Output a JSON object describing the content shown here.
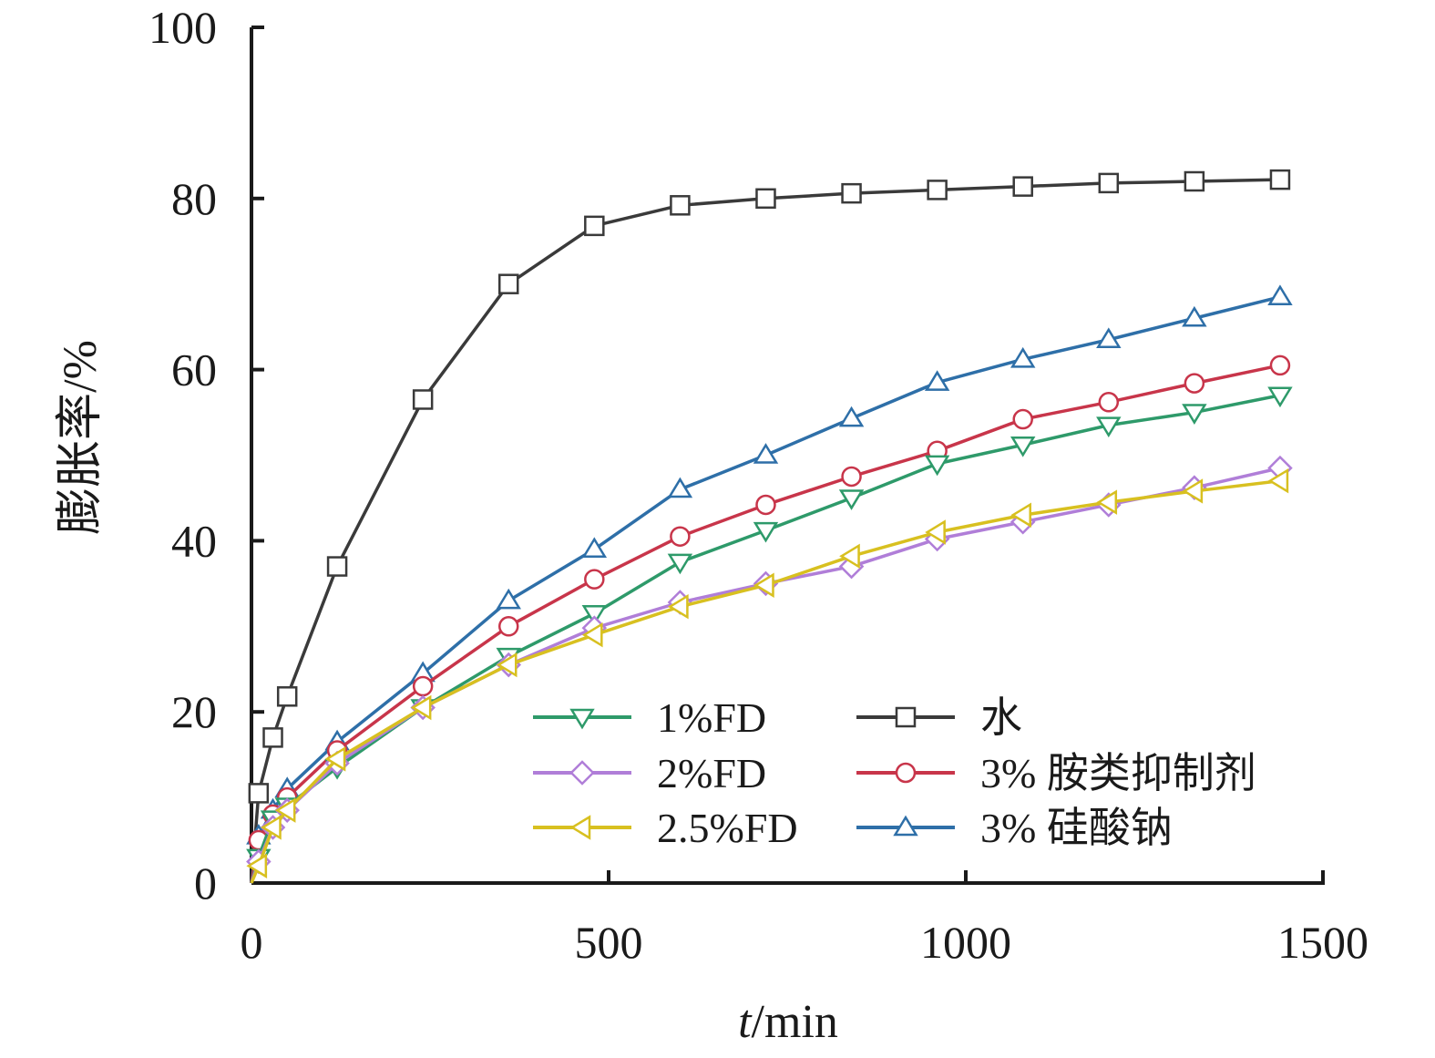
{
  "chart_data": {
    "type": "line",
    "title": "",
    "xlabel_italic": "t",
    "xlabel_rest": "/min",
    "ylabel": "膨胀率/%",
    "xlim": [
      0,
      1500
    ],
    "ylim": [
      0,
      100
    ],
    "x_ticks": [
      0,
      500,
      1000,
      1500
    ],
    "y_ticks": [
      0,
      20,
      40,
      60,
      80,
      100
    ],
    "grid": false,
    "legend_position": "lower-right",
    "series": [
      {
        "name": "水",
        "color": "#3a3a3a",
        "marker": "square",
        "x": [
          10,
          30,
          50,
          120,
          240,
          360,
          480,
          600,
          720,
          840,
          960,
          1080,
          1200,
          1320,
          1440
        ],
        "y": [
          10.5,
          17,
          21.8,
          37,
          56.5,
          70,
          76.8,
          79.2,
          80,
          80.6,
          81,
          81.4,
          81.8,
          82,
          82.2
        ]
      },
      {
        "name": "3% 硅酸钠",
        "color": "#2e6fa8",
        "marker": "triangle-up",
        "x": [
          10,
          30,
          50,
          120,
          240,
          360,
          480,
          600,
          720,
          840,
          960,
          1080,
          1200,
          1320,
          1440
        ],
        "y": [
          5.5,
          8.5,
          11,
          16.5,
          24.5,
          33,
          39,
          46,
          50,
          54.3,
          58.5,
          61.2,
          63.5,
          66,
          68.5
        ]
      },
      {
        "name": "3% 胺类抑制剂",
        "color": "#c8354a",
        "marker": "circle",
        "x": [
          10,
          30,
          50,
          120,
          240,
          360,
          480,
          600,
          720,
          840,
          960,
          1080,
          1200,
          1320,
          1440
        ],
        "y": [
          5,
          8,
          10,
          15.5,
          23,
          30,
          35.5,
          40.5,
          44.2,
          47.5,
          50.5,
          54.2,
          56.2,
          58.4,
          60.5
        ]
      },
      {
        "name": "1%FD",
        "color": "#2e9a6a",
        "marker": "triangle-down",
        "x": [
          10,
          30,
          50,
          120,
          240,
          360,
          480,
          600,
          720,
          840,
          960,
          1080,
          1200,
          1320,
          1440
        ],
        "y": [
          3,
          7.5,
          9,
          13.5,
          20.5,
          26.5,
          31.5,
          37.5,
          41.2,
          45,
          49,
          51.2,
          53.5,
          55,
          57
        ]
      },
      {
        "name": "2%FD",
        "color": "#b07ed8",
        "marker": "diamond",
        "x": [
          10,
          30,
          50,
          120,
          240,
          360,
          480,
          600,
          720,
          840,
          960,
          1080,
          1200,
          1320,
          1440
        ],
        "y": [
          2.5,
          6.5,
          8.5,
          14,
          20.5,
          25.5,
          29.8,
          32.8,
          35,
          37,
          40.2,
          42.2,
          44.2,
          46.2,
          48.5
        ]
      },
      {
        "name": "2.5%FD",
        "color": "#d8c020",
        "marker": "triangle-left",
        "x": [
          10,
          30,
          50,
          120,
          240,
          360,
          480,
          600,
          720,
          840,
          960,
          1080,
          1200,
          1320,
          1440
        ],
        "y": [
          2,
          6.5,
          8.5,
          14.5,
          20.5,
          25.5,
          29,
          32.3,
          34.8,
          38.2,
          41,
          43,
          44.5,
          45.8,
          47
        ]
      }
    ],
    "legend_order": [
      "1%FD",
      "水",
      "2%FD",
      "3% 胺类抑制剂",
      "2.5%FD",
      "3% 硅酸钠"
    ]
  }
}
